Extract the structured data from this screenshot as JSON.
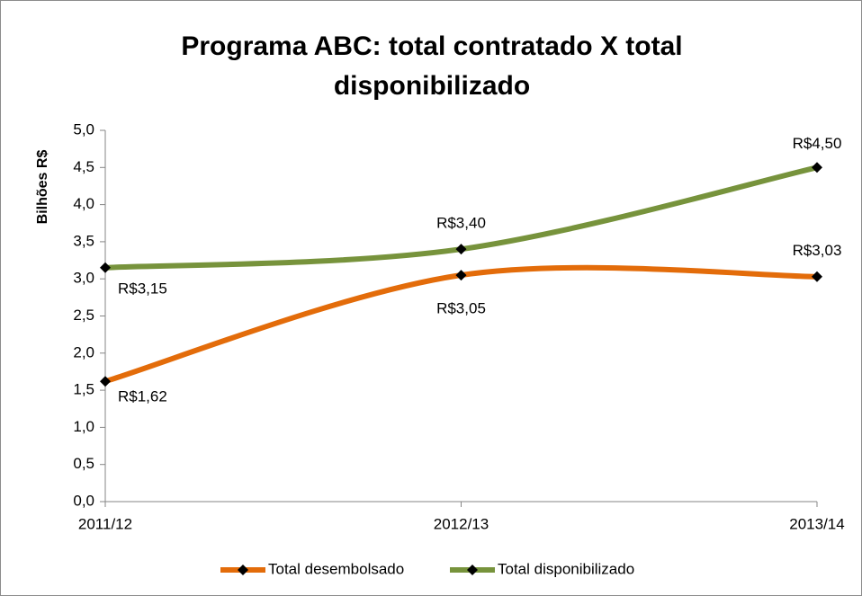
{
  "chart_data": {
    "type": "line",
    "title": "Programa ABC: total contratado X total disponibilizado",
    "y_label": "Bilhões R$",
    "categories": [
      "2011/12",
      "2012/13",
      "2013/14"
    ],
    "series": [
      {
        "name": "Total desembolsado",
        "color": "#e36c0a",
        "values": [
          1.62,
          3.05,
          3.03
        ],
        "value_labels": [
          "R$1,62",
          "R$3,05",
          "R$3,03"
        ]
      },
      {
        "name": "Total disponibilizado",
        "color": "#77933c",
        "values": [
          3.15,
          3.4,
          4.5
        ],
        "value_labels": [
          "R$3,15",
          "R$3,40",
          "R$4,50"
        ]
      }
    ],
    "ylim": [
      0,
      5
    ],
    "yticks": [
      {
        "value": 0,
        "label": "0,0"
      },
      {
        "value": 0.5,
        "label": "0,5"
      },
      {
        "value": 1,
        "label": "1,0"
      },
      {
        "value": 1.5,
        "label": "1,5"
      },
      {
        "value": 2,
        "label": "2,0"
      },
      {
        "value": 2.5,
        "label": "2,5"
      },
      {
        "value": 3,
        "label": "3,0"
      },
      {
        "value": 3.5,
        "label": "3,5"
      },
      {
        "value": 4,
        "label": "4,0"
      },
      {
        "value": 4.5,
        "label": "4,5"
      },
      {
        "value": 5,
        "label": "5,0"
      }
    ],
    "smooth": true,
    "marker_color": "#000000",
    "legend": "bottom"
  }
}
